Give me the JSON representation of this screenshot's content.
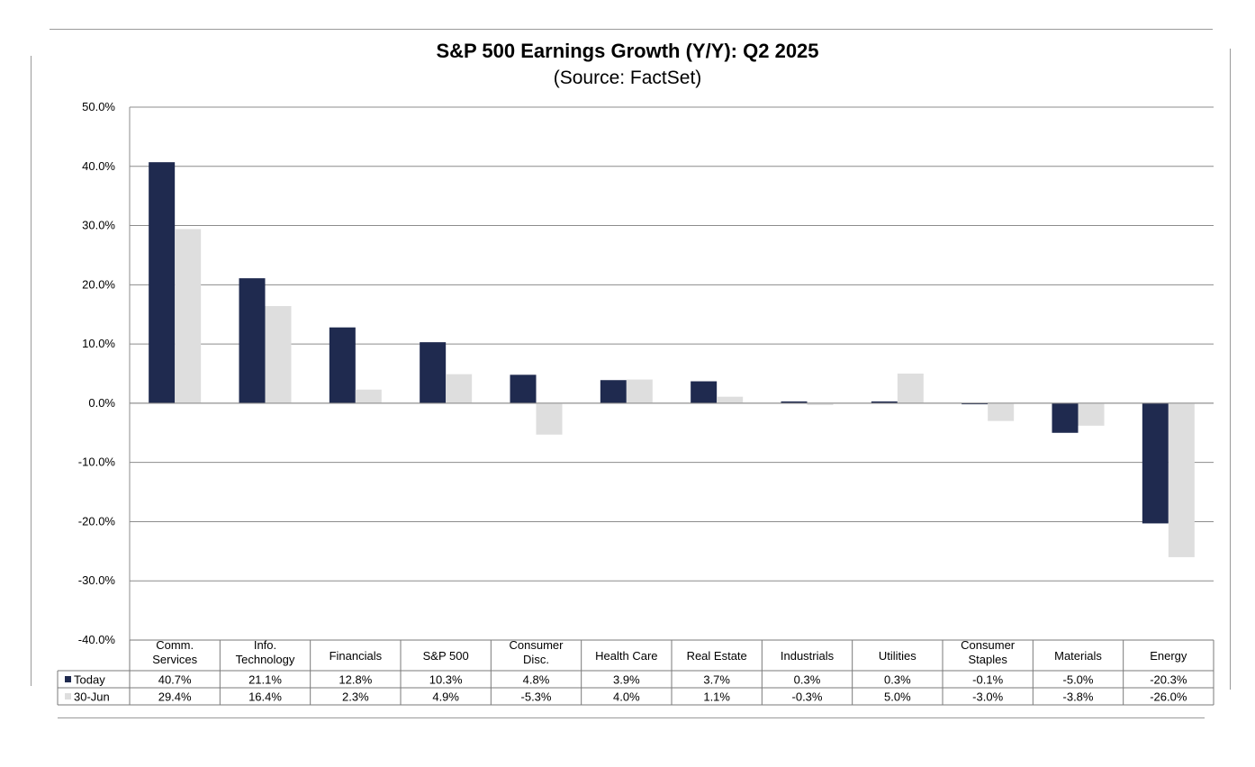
{
  "chart_data": {
    "type": "bar",
    "title": "S&P 500 Earnings Growth (Y/Y): Q2 2025",
    "subtitle": "(Source: FactSet)",
    "categories": [
      [
        "Comm.",
        "Services"
      ],
      [
        "Info.",
        "Technology"
      ],
      [
        "Financials"
      ],
      [
        "S&P 500"
      ],
      [
        "Consumer",
        "Disc."
      ],
      [
        "Health Care"
      ],
      [
        "Real Estate"
      ],
      [
        "Industrials"
      ],
      [
        "Utilities"
      ],
      [
        "Consumer",
        "Staples"
      ],
      [
        "Materials"
      ],
      [
        "Energy"
      ]
    ],
    "series": [
      {
        "name": "Today",
        "color": "#1f2a4f",
        "values": [
          40.7,
          21.1,
          12.8,
          10.3,
          4.8,
          3.9,
          3.7,
          0.3,
          0.3,
          -0.1,
          -5.0,
          -20.3
        ],
        "labels": [
          "40.7%",
          "21.1%",
          "12.8%",
          "10.3%",
          "4.8%",
          "3.9%",
          "3.7%",
          "0.3%",
          "0.3%",
          "-0.1%",
          "-5.0%",
          "-20.3%"
        ]
      },
      {
        "name": "30-Jun",
        "color": "#dedede",
        "values": [
          29.4,
          16.4,
          2.3,
          4.9,
          -5.3,
          4.0,
          1.1,
          -0.3,
          5.0,
          -3.0,
          -3.8,
          -26.0
        ],
        "labels": [
          "29.4%",
          "16.4%",
          "2.3%",
          "4.9%",
          "-5.3%",
          "4.0%",
          "1.1%",
          "-0.3%",
          "5.0%",
          "-3.0%",
          "-3.8%",
          "-26.0%"
        ]
      }
    ],
    "ylim": [
      -40,
      50
    ],
    "yticks": [
      50,
      40,
      30,
      20,
      10,
      0,
      -10,
      -20,
      -30,
      -40
    ],
    "ytick_labels": [
      "50.0%",
      "40.0%",
      "30.0%",
      "20.0%",
      "10.0%",
      "0.0%",
      "-10.0%",
      "-20.0%",
      "-30.0%",
      "-40.0%"
    ],
    "grid": true,
    "legend": "data-table"
  }
}
